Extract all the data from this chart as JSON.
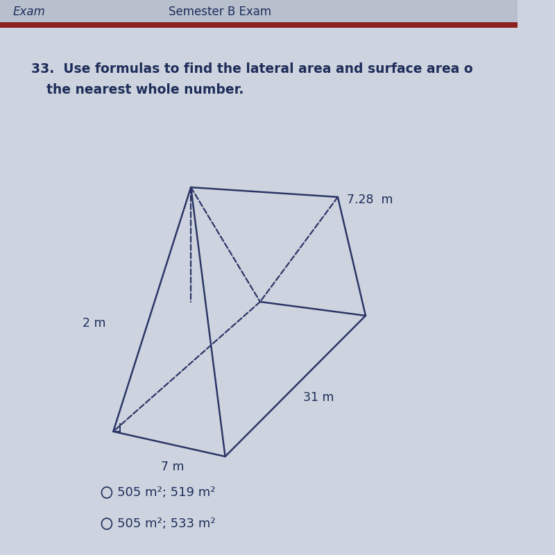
{
  "background_color": "#cdd4df",
  "header_bg": "#b8c0ce",
  "header_text": "Semester B Exam",
  "header_left": "Exam",
  "header_bar_color": "#8b2020",
  "question_number": "33.",
  "question_text": "Use formulas to find the lateral area and surface area o",
  "question_text2": "the nearest whole number.",
  "dim_slant": "7.28  m",
  "dim_length": "31 m",
  "dim_height": "2 m",
  "dim_base": "7 m",
  "answer1": "505 m²; 519 m²",
  "answer2": "505 m²; 533 m²",
  "prism_color": "#2b3566",
  "dashed_color": "#2b3566",
  "text_color": "#1e2d5a",
  "answer_text_color": "#1e2d5a",
  "figsize": [
    8.0,
    8.0
  ],
  "dpi": 100
}
